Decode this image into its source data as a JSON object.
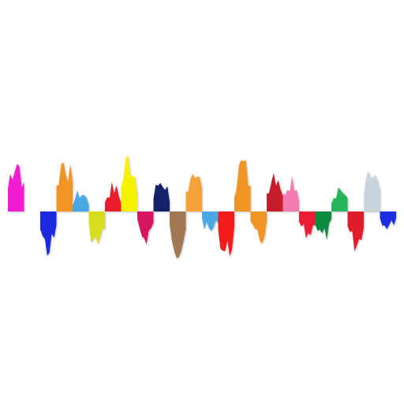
{
  "waveform": {
    "icon": "colorful-sound-wave",
    "segments": [
      {
        "color": "#f21cd3",
        "up": 1.0,
        "down": 0.0
      },
      {
        "color": "#ffffff",
        "up": 0.0,
        "down": 0.0
      },
      {
        "color": "#1d2be0",
        "up": 0.0,
        "down": 0.9
      },
      {
        "color": "#f09428",
        "up": 1.0,
        "down": 0.0
      },
      {
        "color": "#4aa7e3",
        "up": 0.35,
        "down": 0.0
      },
      {
        "color": "#d6dd1e",
        "up": 0.0,
        "down": 0.78
      },
      {
        "color": "#e81c2c",
        "up": 0.45,
        "down": 0.0
      },
      {
        "color": "#f6f200",
        "up": 1.0,
        "down": 0.0
      },
      {
        "color": "#d7185e",
        "up": 0.0,
        "down": 0.6
      },
      {
        "color": "#182268",
        "up": 0.6,
        "down": 0.0
      },
      {
        "color": "#a27752",
        "up": 0.0,
        "down": 0.85
      },
      {
        "color": "#f6a23a",
        "up": 0.85,
        "down": 0.0
      },
      {
        "color": "#4aa7e3",
        "up": 0.0,
        "down": 0.45
      },
      {
        "color": "#f21c1c",
        "up": 0.0,
        "down": 1.0
      },
      {
        "color": "#f09428",
        "up": 0.9,
        "down": 0.0
      },
      {
        "color": "#f09428",
        "up": 0.0,
        "down": 0.7
      },
      {
        "color": "#c71f2c",
        "up": 0.78,
        "down": 0.0
      },
      {
        "color": "#f57bb0",
        "up": 0.65,
        "down": 0.0
      },
      {
        "color": "#ef1f34",
        "up": 0.0,
        "down": 0.55
      },
      {
        "color": "#108a3d",
        "up": 0.0,
        "down": 0.6
      },
      {
        "color": "#26b55a",
        "up": 0.45,
        "down": 0.0
      },
      {
        "color": "#e01c2a",
        "up": 0.0,
        "down": 0.75
      },
      {
        "color": "#c7d4dd",
        "up": 0.7,
        "down": 0.0
      },
      {
        "color": "#1c2fe0",
        "up": 0.0,
        "down": 0.35
      }
    ]
  }
}
